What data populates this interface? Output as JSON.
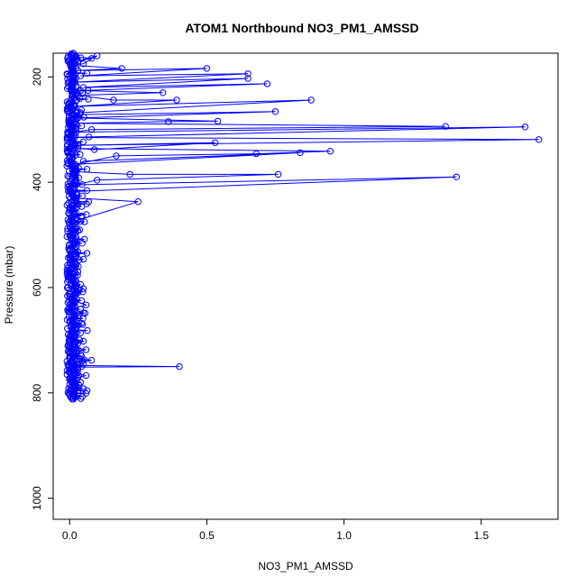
{
  "chart_data": {
    "type": "scatter",
    "title": "ATOM1 Northbound NO3_PM1_AMSSD",
    "xlabel": "NO3_PM1_AMSSD",
    "ylabel": "Pressure (mbar)",
    "xlim": [
      -0.06,
      1.78
    ],
    "ylim": [
      1040,
      155
    ],
    "y_reversed": true,
    "grid": false,
    "x_ticks": [
      0.0,
      0.5,
      1.0,
      1.5
    ],
    "x_tick_labels": [
      "0.0",
      "0.5",
      "1.0",
      "1.5"
    ],
    "y_ticks": [
      200,
      400,
      600,
      800,
      1000
    ],
    "y_tick_labels": [
      "200",
      "400",
      "600",
      "800",
      "1000"
    ],
    "series": [
      {
        "color": "#0000ff",
        "marker": "open-circle",
        "connected": true,
        "points": [
          [
            0.01,
            812
          ],
          [
            0.02,
            808
          ],
          [
            0.0,
            804
          ],
          [
            0.03,
            800
          ],
          [
            0.01,
            795
          ],
          [
            0.05,
            792
          ],
          [
            0.02,
            788
          ],
          [
            0.0,
            784
          ],
          [
            0.04,
            780
          ],
          [
            0.01,
            776
          ],
          [
            0.03,
            771
          ],
          [
            0.06,
            767
          ],
          [
            0.02,
            763
          ],
          [
            0.0,
            759
          ],
          [
            0.03,
            755
          ],
          [
            0.01,
            751
          ],
          [
            0.4,
            750
          ],
          [
            0.02,
            748
          ],
          [
            0.05,
            745
          ],
          [
            0.01,
            741
          ],
          [
            0.08,
            738
          ],
          [
            0.02,
            734
          ],
          [
            0.0,
            730
          ],
          [
            0.04,
            726
          ],
          [
            0.01,
            722
          ],
          [
            0.06,
            718
          ],
          [
            0.02,
            714
          ],
          [
            0.0,
            710
          ],
          [
            0.03,
            706
          ],
          [
            0.05,
            702
          ],
          [
            0.01,
            698
          ],
          [
            0.02,
            692
          ],
          [
            0.04,
            686
          ],
          [
            0.01,
            680
          ],
          [
            0.03,
            672
          ],
          [
            0.0,
            664
          ],
          [
            0.02,
            656
          ],
          [
            0.05,
            648
          ],
          [
            0.01,
            640
          ],
          [
            0.06,
            633
          ],
          [
            0.02,
            626
          ],
          [
            0.0,
            618
          ],
          [
            0.03,
            610
          ],
          [
            0.05,
            602
          ],
          [
            0.01,
            594
          ],
          [
            0.02,
            586
          ],
          [
            0.0,
            578
          ],
          [
            0.03,
            570
          ],
          [
            0.01,
            562
          ],
          [
            0.02,
            552
          ],
          [
            0.0,
            542
          ],
          [
            0.03,
            532
          ],
          [
            0.01,
            522
          ],
          [
            0.02,
            512
          ],
          [
            0.0,
            502
          ],
          [
            0.03,
            492
          ],
          [
            0.01,
            482
          ],
          [
            0.03,
            472
          ],
          [
            0.25,
            437
          ],
          [
            0.02,
            430
          ],
          [
            0.01,
            424
          ],
          [
            0.0,
            418
          ],
          [
            1.41,
            390
          ],
          [
            0.02,
            405
          ],
          [
            0.1,
            396
          ],
          [
            0.76,
            385
          ],
          [
            0.22,
            385
          ],
          [
            0.02,
            380
          ],
          [
            0.01,
            375
          ],
          [
            0.05,
            360
          ],
          [
            0.84,
            344
          ],
          [
            0.02,
            366
          ],
          [
            0.17,
            350
          ],
          [
            0.68,
            346
          ],
          [
            0.95,
            341
          ],
          [
            0.03,
            336
          ],
          [
            0.09,
            338
          ],
          [
            0.53,
            325
          ],
          [
            0.02,
            330
          ],
          [
            1.71,
            319
          ],
          [
            0.0,
            315
          ],
          [
            0.07,
            314
          ],
          [
            1.66,
            295
          ],
          [
            0.01,
            305
          ],
          [
            0.08,
            300
          ],
          [
            1.37,
            294
          ],
          [
            0.02,
            288
          ],
          [
            0.36,
            285
          ],
          [
            0.54,
            284
          ],
          [
            0.03,
            278
          ],
          [
            0.75,
            266
          ],
          [
            0.01,
            272
          ],
          [
            0.04,
            268
          ],
          [
            0.88,
            244
          ],
          [
            0.02,
            256
          ],
          [
            0.39,
            244
          ],
          [
            0.16,
            244
          ],
          [
            0.03,
            235
          ],
          [
            0.34,
            230
          ],
          [
            0.04,
            226
          ],
          [
            0.72,
            213
          ],
          [
            0.05,
            220
          ],
          [
            0.65,
            203
          ],
          [
            0.02,
            210
          ],
          [
            0.65,
            194
          ],
          [
            0.04,
            198
          ],
          [
            0.5,
            184
          ],
          [
            0.03,
            188
          ],
          [
            0.19,
            184
          ],
          [
            0.01,
            178
          ],
          [
            0.05,
            175
          ],
          [
            0.1,
            160
          ],
          [
            0.03,
            170
          ],
          [
            0.08,
            165
          ],
          [
            0.02,
            162
          ],
          [
            0.01,
            158
          ]
        ]
      }
    ],
    "noise_cluster": {
      "x_range": [
        -0.01,
        0.07
      ],
      "p_range": [
        155,
        812
      ]
    }
  }
}
